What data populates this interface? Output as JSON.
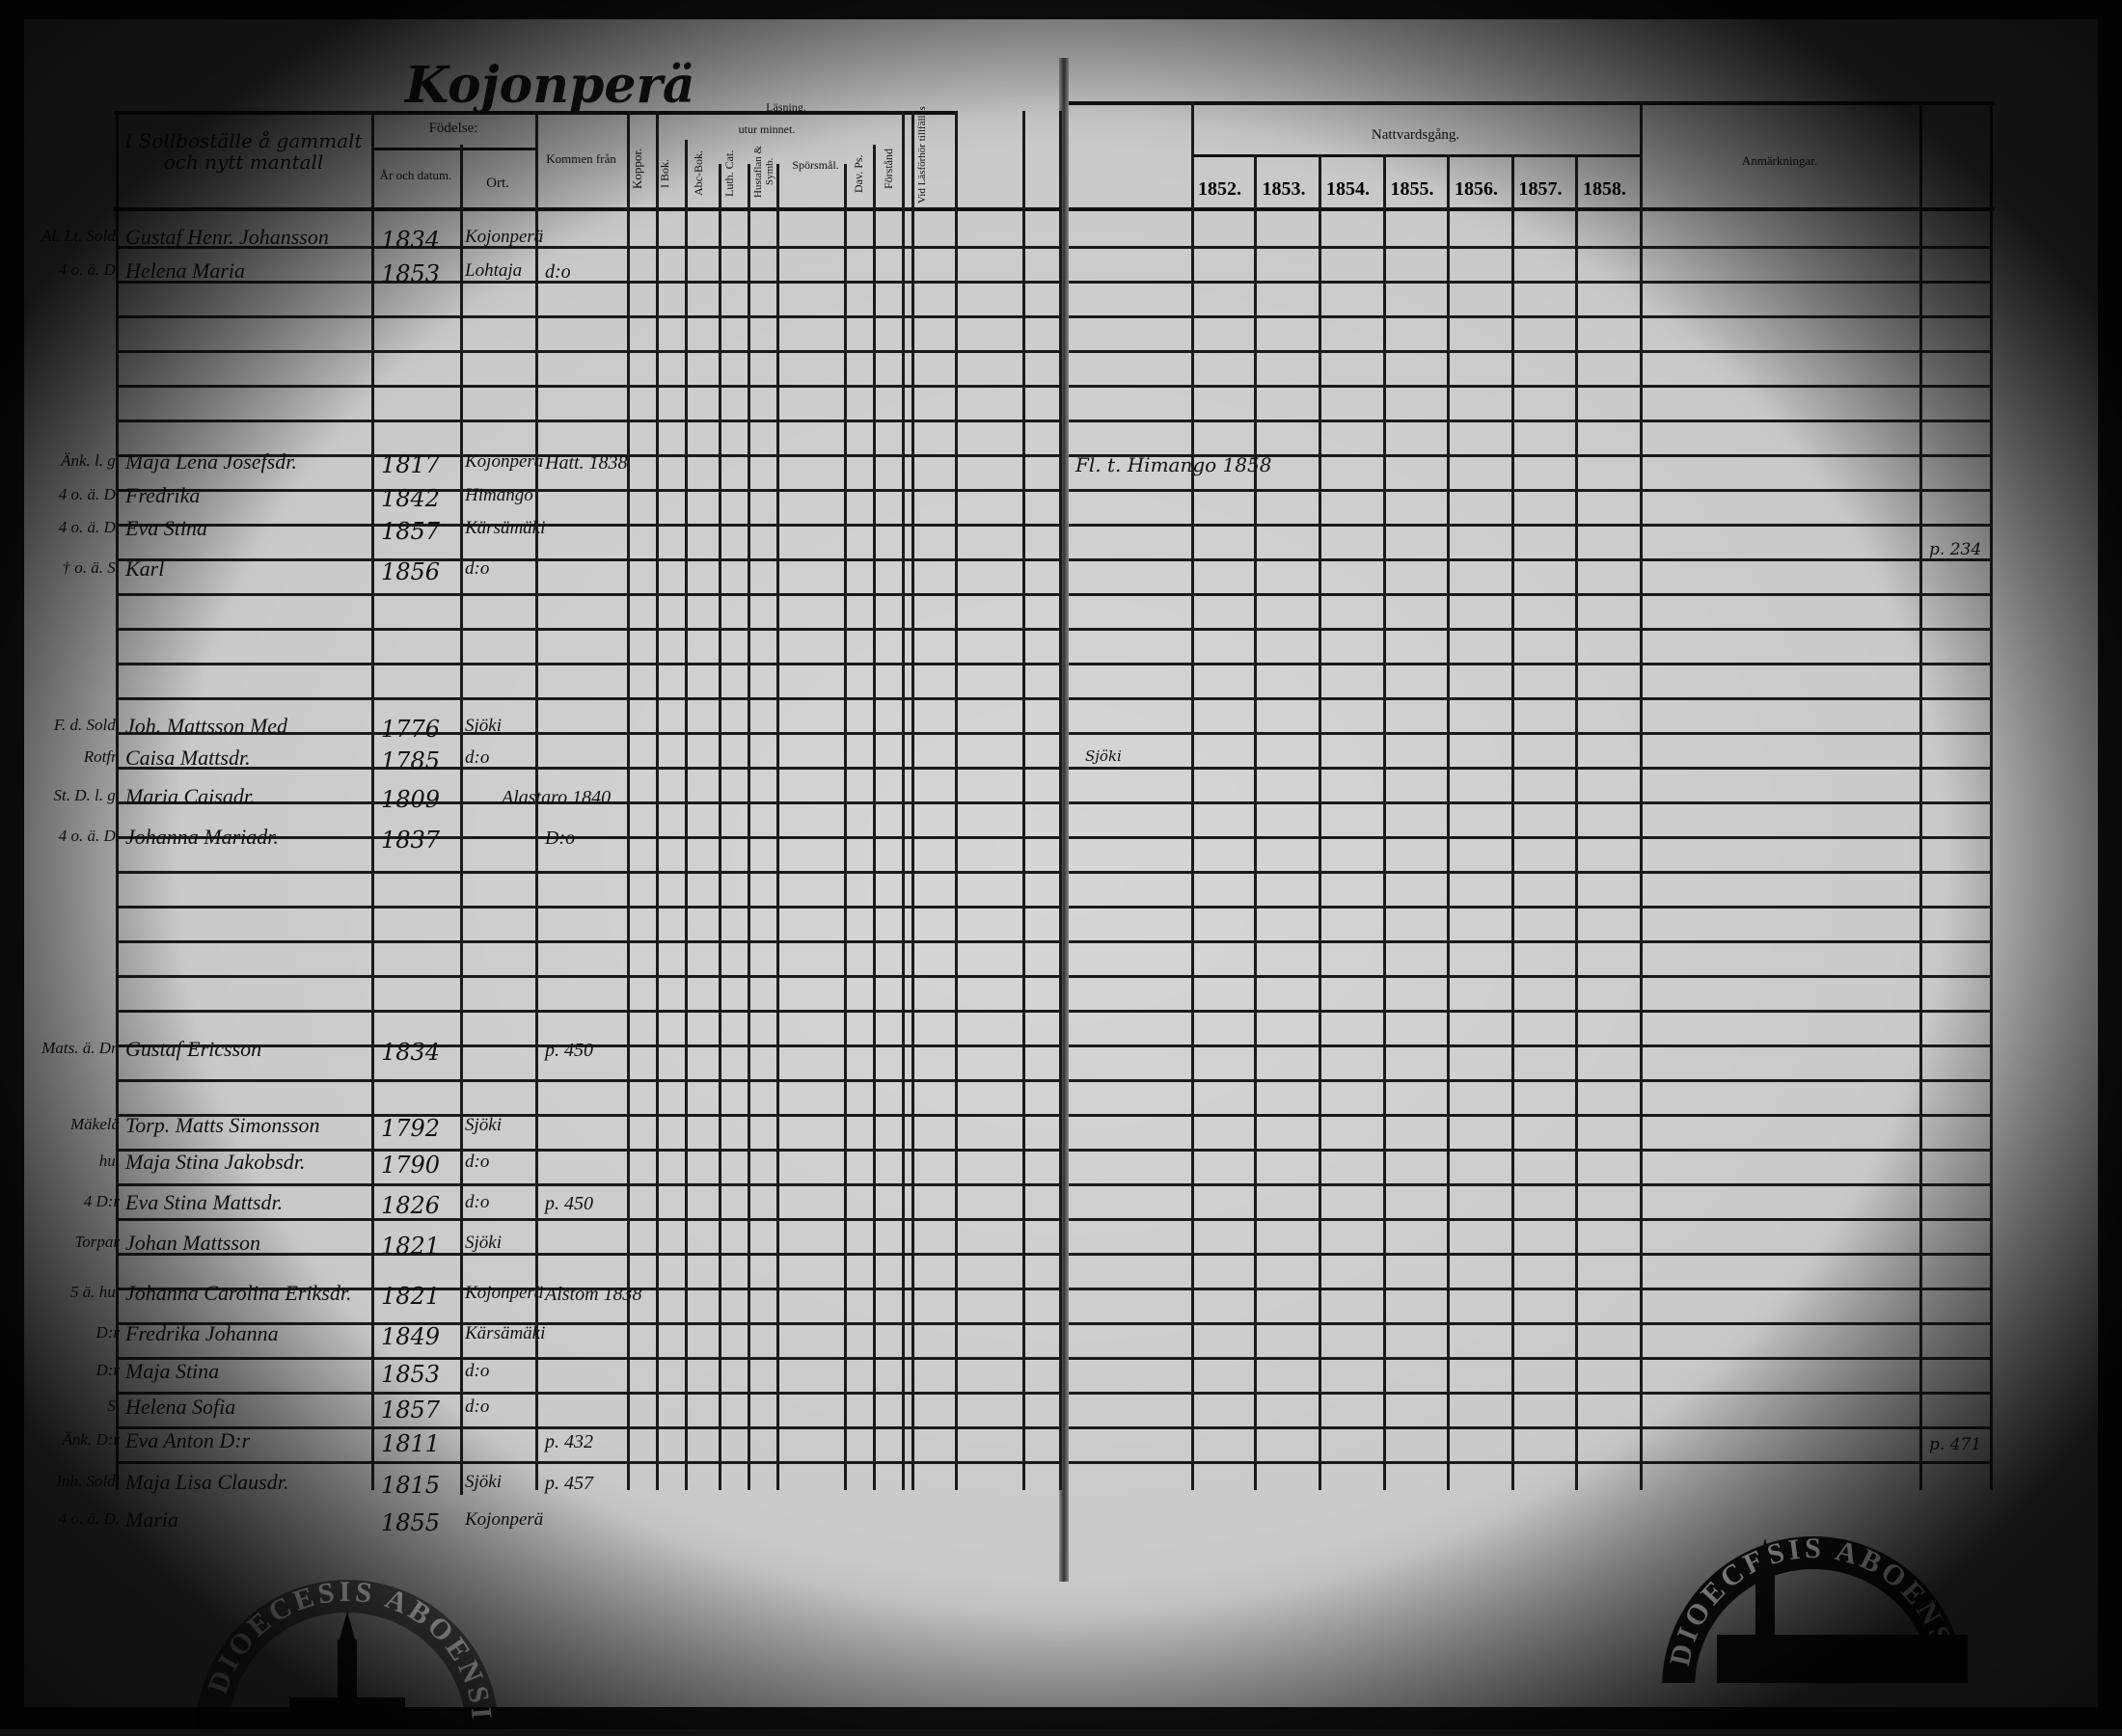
{
  "title": "Kojonperä",
  "left_page": {
    "headers": {
      "name_column": "I Sollboställe å gammalt och nytt mantall",
      "birth": "Födelse:",
      "birth_year": "År och datum.",
      "birth_place": "Ort.",
      "came_from": "Kommen från",
      "smallpox": "Koppor.",
      "reading": "Läsning.",
      "from_memory": "utur minnet.",
      "in_book": "I Bok.",
      "abc_book": "Abc-Bok.",
      "luth_cat": "Luth. Cat.",
      "house_table": "Hustaflan & Symb.",
      "questions": "Spörsmål.",
      "dav_ps": "Dav. Ps.",
      "understanding": "Förstånd",
      "exam": "Vid Läsförhör tillfälles"
    },
    "entries": [
      {
        "prefix": "Al. Lt. Sold.",
        "name": "Gustaf Henr. Johansson",
        "birth": "1834",
        "place": "Kojonperä",
        "from": ""
      },
      {
        "prefix": "4 o. ä. D.",
        "name": "Helena Maria",
        "birth": "1853",
        "place": "Lohtaja",
        "from": "d:o"
      },
      {
        "prefix": "Änk. l. g.",
        "name": "Maja Lena Josefsdr.",
        "birth": "1817",
        "place": "Kojonperä",
        "from": "Hatt. 1838"
      },
      {
        "prefix": "4 o. ä. D.",
        "name": "Fredrika",
        "birth": "1842",
        "place": "Himango",
        "from": ""
      },
      {
        "prefix": "4 o. ä. D.",
        "name": "Eva Stina",
        "birth": "1857",
        "place": "Kärsämäki",
        "from": ""
      },
      {
        "prefix": "† o. ä. S.",
        "name": "Karl",
        "birth": "1856",
        "place": "d:o",
        "from": ""
      },
      {
        "prefix": "F. d. Sold.",
        "name": "Joh. Mattsson Med",
        "birth": "1776",
        "place": "Sjöki",
        "from": ""
      },
      {
        "prefix": "Rotfr.",
        "name": "Caisa Mattsdr.",
        "birth": "1785",
        "place": "d:o",
        "from": ""
      },
      {
        "prefix": "St. D. l. g.",
        "name": "Maria Caisadr.",
        "birth": "1809",
        "place": "",
        "from": "Alastaro 1840"
      },
      {
        "prefix": "4 o. ä. D.",
        "name": "Johanna Mariadr.",
        "birth": "1837",
        "place": "",
        "from": "D:o"
      },
      {
        "prefix": "Mats. ä. Dr.",
        "name": "Gustaf Ericsson",
        "birth": "1834",
        "place": "",
        "from": "p. 450"
      },
      {
        "prefix": "Mäkelä",
        "name": "Torp. Matts Simonsson",
        "birth": "1792",
        "place": "Sjöki",
        "from": ""
      },
      {
        "prefix": "hu.",
        "name": "Maja Stina Jakobsdr.",
        "birth": "1790",
        "place": "d:o",
        "from": ""
      },
      {
        "prefix": "4 D:r",
        "name": "Eva Stina Mattsdr.",
        "birth": "1826",
        "place": "d:o",
        "from": "p. 450"
      },
      {
        "prefix": "Torpar",
        "name": "Johan Mattsson",
        "birth": "1821",
        "place": "Sjöki",
        "from": ""
      },
      {
        "prefix": "5 ä. hu.",
        "name": "Johanna Carolina Eriksdr.",
        "birth": "1821",
        "place": "Kojonperä",
        "from": "Alstom 1838"
      },
      {
        "prefix": "D:r",
        "name": "Fredrika Johanna",
        "birth": "1849",
        "place": "Kärsämäki",
        "from": ""
      },
      {
        "prefix": "D:r",
        "name": "Maja Stina",
        "birth": "1853",
        "place": "d:o",
        "from": ""
      },
      {
        "prefix": "S.",
        "name": "Helena Sofia",
        "birth": "1857",
        "place": "d:o",
        "from": ""
      },
      {
        "prefix": "Änk. D:r",
        "name": "Eva Anton D:r",
        "birth": "1811",
        "place": "",
        "from": "p. 432"
      },
      {
        "prefix": "Inh. Sold.",
        "name": "Maja Lisa Clausdr.",
        "birth": "1815",
        "place": "Sjöki",
        "from": "p. 457"
      },
      {
        "prefix": "4 o. ä. D.",
        "name": "Maria",
        "birth": "1855",
        "place": "Kojonperä",
        "from": ""
      }
    ]
  },
  "right_page": {
    "communion_header": "Nattvardsgång.",
    "years": [
      "1852.",
      "1853.",
      "1854.",
      "1855.",
      "1856.",
      "1857.",
      "1858."
    ],
    "remarks_header": "Anmärkningar.",
    "notes": [
      "Fl. t. Himango 1858",
      "Sjöki",
      "p. 234",
      "p. 471"
    ]
  },
  "stamps": {
    "left": "DIOECESIS ABOENSIS",
    "right": "DIOECESIS ABOENSIS"
  }
}
